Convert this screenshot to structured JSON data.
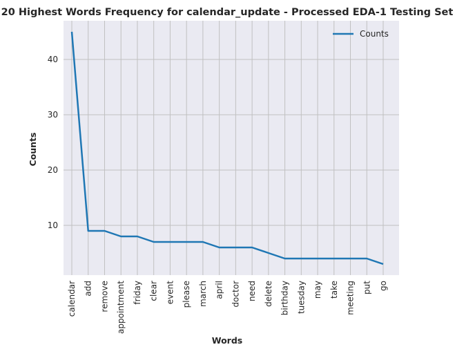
{
  "chart_data": {
    "type": "line",
    "title": "20 Highest Words Frequency for calendar_update - Processed EDA-1 Testing Set",
    "xlabel": "Words",
    "ylabel": "Counts",
    "categories": [
      "calendar",
      "add",
      "remove",
      "appointment",
      "friday",
      "clear",
      "event",
      "please",
      "march",
      "april",
      "doctor",
      "need",
      "delete",
      "birthday",
      "tuesday",
      "may",
      "take",
      "meeting",
      "put",
      "go"
    ],
    "series": [
      {
        "name": "Counts",
        "values": [
          45,
          9,
          9,
          8,
          8,
          7,
          7,
          7,
          7,
          6,
          6,
          6,
          5,
          4,
          4,
          4,
          4,
          4,
          4,
          3
        ],
        "color": "#1f77b4"
      }
    ],
    "ylim": [
      1,
      47
    ],
    "yticks": [
      10,
      20,
      30,
      40
    ],
    "grid": true,
    "legend_position": "top-right",
    "background": "#eaeaf2",
    "grid_color": "#c0c0c0"
  }
}
